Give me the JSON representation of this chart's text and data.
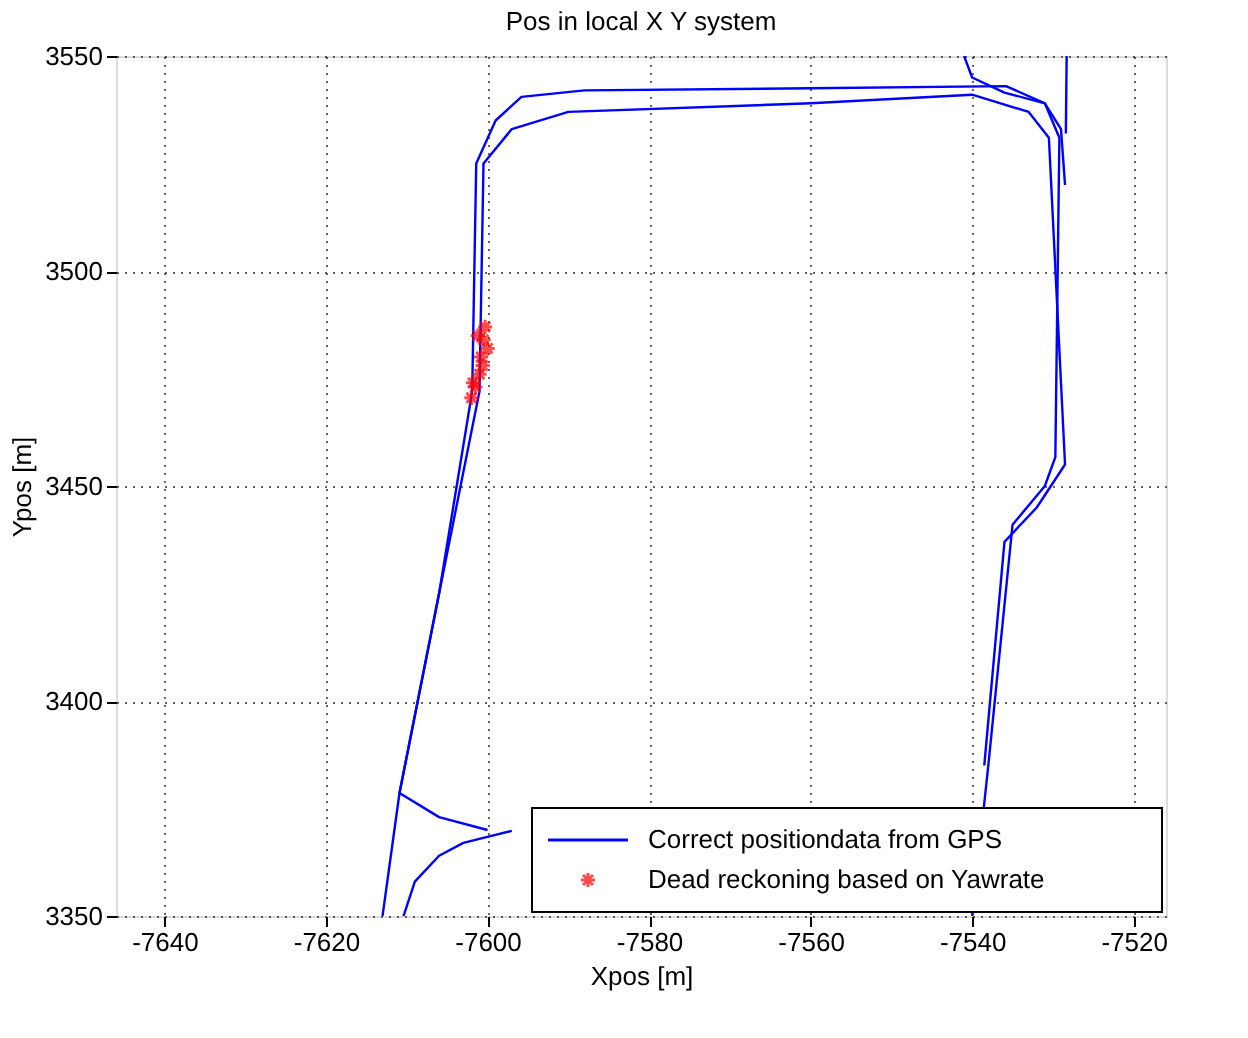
{
  "chart_data": {
    "type": "line",
    "title": "Pos in local X Y system",
    "xlabel": "Xpos [m]",
    "ylabel": "Ypos [m]",
    "xlim": [
      -7646,
      -7516
    ],
    "ylim": [
      3350,
      3550
    ],
    "xticks": [
      -7640,
      -7620,
      -7600,
      -7580,
      -7560,
      -7540,
      -7520
    ],
    "yticks": [
      3350,
      3400,
      3450,
      3500,
      3550
    ],
    "grid": true,
    "legend": "bottom right",
    "line_style": "solid",
    "series": [
      {
        "name": "Correct positiondata from GPS",
        "color": "#0000ff",
        "x": [
          -7613,
          -7610.9,
          -7606,
          -7601.9,
          -7601.4,
          -7599,
          -7595.8,
          -7588,
          -7560,
          -7535.8,
          -7531,
          -7529.2,
          -7529.7,
          -7531,
          -7535,
          -7538,
          -7540
        ],
        "values": [
          3350,
          3378.6,
          3425,
          3472,
          3525,
          3535,
          3540.5,
          3542,
          3542.5,
          3543,
          3539,
          3531,
          3456.7,
          3450,
          3441,
          3385,
          3350
        ]
      },
      {
        "color": "#0000ff",
        "x": [
          -7610.4,
          -7609,
          -7606,
          -7603,
          -7597
        ],
        "values": [
          3350,
          3358,
          3364,
          3367,
          3369.8
        ]
      },
      {
        "color": "#0000ff",
        "x": [
          -7600,
          -7606,
          -7610.9,
          -7606,
          -7601,
          -7600.5,
          -7597,
          -7590,
          -7560,
          -7540,
          -7533,
          -7530.5,
          -7528.5,
          -7532,
          -7536,
          -7538.5
        ],
        "values": [
          3370,
          3373,
          3378.6,
          3425,
          3472,
          3525,
          3533,
          3537,
          3539,
          3541,
          3537,
          3531,
          3455,
          3445,
          3437,
          3385
        ]
      },
      {
        "color": "#0000ff",
        "x": [
          -7541,
          -7540,
          -7536,
          -7531,
          -7529,
          -7528.5
        ],
        "values": [
          3550,
          3545,
          3541.5,
          3539,
          3533,
          3520
        ]
      },
      {
        "color": "#0000ff",
        "x": [
          -7528.3,
          -7528.4
        ],
        "values": [
          3550,
          3532
        ]
      },
      {
        "name": "Dead reckoning based on Yawrate",
        "color": "#ff0000",
        "type": "scatter",
        "marker": "cross",
        "x": [
          -7602,
          -7601.5,
          -7601,
          -7600.8,
          -7600.5,
          -7600.3,
          -7600,
          -7601.8,
          -7600.6,
          -7601.2
        ],
        "values": [
          3470.5,
          3473,
          3476,
          3480,
          3484,
          3487,
          3482,
          3474,
          3478,
          3485
        ]
      }
    ]
  }
}
